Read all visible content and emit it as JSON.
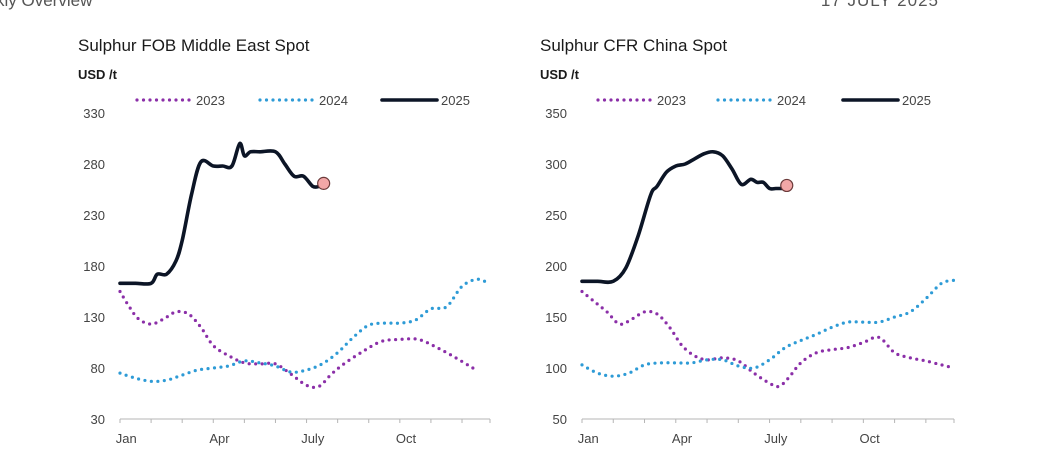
{
  "header": {
    "left_text": "kly Overview",
    "right_text": "17 JULY 2025"
  },
  "chart_data": [
    {
      "type": "line",
      "title": "Sulphur FOB Middle East Spot",
      "ylabel": "USD /t",
      "xlabel": "",
      "ylim": [
        30,
        330
      ],
      "yticks": [
        30,
        80,
        130,
        180,
        230,
        280,
        330
      ],
      "xlim": [
        1,
        12.9
      ],
      "xticks": [
        {
          "v": 1.2,
          "label": "Jan"
        },
        {
          "v": 4.2,
          "label": "Apr"
        },
        {
          "v": 7.2,
          "label": "July"
        },
        {
          "v": 10.2,
          "label": "Oct"
        }
      ],
      "legend_position": "top",
      "grid": false,
      "series": [
        {
          "name": "2023",
          "color": "#8b2fa8",
          "style": "dotted",
          "x": [
            1,
            1.3,
            1.6,
            2,
            2.4,
            2.8,
            3.2,
            3.6,
            4,
            4.5,
            5,
            5.5,
            6,
            6.5,
            7,
            7.4,
            7.8,
            8.2,
            8.8,
            9.4,
            10,
            10.6,
            11.2,
            11.8,
            12.4
          ],
          "values": [
            155,
            140,
            128,
            123,
            128,
            135,
            133,
            120,
            102,
            92,
            85,
            84,
            84,
            74,
            63,
            62,
            74,
            84,
            96,
            106,
            108,
            108,
            100,
            90,
            79
          ]
        },
        {
          "name": "2024",
          "color": "#2e9bd6",
          "style": "dotted",
          "x": [
            1,
            1.5,
            2,
            2.5,
            3,
            3.5,
            4,
            4.5,
            5,
            5.5,
            6,
            6.5,
            7,
            7.5,
            8,
            8.5,
            9,
            9.5,
            10,
            10.5,
            11,
            11.5,
            12,
            12.5,
            12.9
          ],
          "values": [
            75,
            70,
            67,
            68,
            73,
            78,
            80,
            82,
            87,
            85,
            82,
            76,
            78,
            84,
            95,
            110,
            122,
            124,
            124,
            127,
            138,
            140,
            160,
            167,
            162
          ]
        },
        {
          "name": "2025",
          "color": "#0c1526",
          "style": "solid",
          "x": [
            1,
            1.5,
            2,
            2.2,
            2.5,
            2.8,
            3,
            3.3,
            3.6,
            4,
            4.3,
            4.6,
            4.85,
            5,
            5.2,
            5.5,
            6,
            6.3,
            6.6,
            6.9,
            7.2,
            7.4
          ],
          "values": [
            163,
            163,
            163,
            172,
            172,
            185,
            205,
            250,
            282,
            278,
            278,
            278,
            300,
            288,
            292,
            292,
            292,
            280,
            268,
            268,
            258,
            258
          ]
        }
      ],
      "marker": {
        "x": 7.55,
        "value": 261,
        "color": "#f2a7a7"
      }
    },
    {
      "type": "line",
      "title": "Sulphur CFR China Spot",
      "ylabel": "USD /t",
      "xlabel": "",
      "ylim": [
        50,
        350
      ],
      "yticks": [
        50,
        100,
        150,
        200,
        250,
        300,
        350
      ],
      "xlim": [
        1,
        12.9
      ],
      "xticks": [
        {
          "v": 1.2,
          "label": "Jan"
        },
        {
          "v": 4.2,
          "label": "Apr"
        },
        {
          "v": 7.2,
          "label": "July"
        },
        {
          "v": 10.2,
          "label": "Oct"
        }
      ],
      "legend_position": "top",
      "grid": false,
      "series": [
        {
          "name": "2023",
          "color": "#8b2fa8",
          "style": "dotted",
          "x": [
            1,
            1.4,
            1.8,
            2.2,
            2.6,
            3,
            3.4,
            3.8,
            4.2,
            4.6,
            5,
            5.5,
            6,
            6.5,
            7,
            7.3,
            7.6,
            8,
            8.5,
            9,
            9.5,
            10,
            10.5,
            11,
            11.5,
            12,
            12.5,
            12.9
          ],
          "values": [
            175,
            165,
            155,
            143,
            148,
            155,
            153,
            140,
            122,
            112,
            108,
            110,
            107,
            95,
            85,
            82,
            90,
            105,
            115,
            118,
            120,
            125,
            130,
            115,
            110,
            107,
            103,
            100
          ]
        },
        {
          "name": "2024",
          "color": "#2e9bd6",
          "style": "dotted",
          "x": [
            1,
            1.5,
            2,
            2.5,
            3,
            3.5,
            4,
            4.5,
            5,
            5.5,
            6,
            6.5,
            7,
            7.5,
            8,
            8.5,
            9,
            9.5,
            10,
            10.5,
            11,
            11.5,
            12,
            12.5,
            12.9
          ],
          "values": [
            103,
            95,
            92,
            95,
            103,
            105,
            105,
            105,
            108,
            108,
            102,
            100,
            108,
            120,
            127,
            133,
            140,
            145,
            145,
            145,
            150,
            155,
            168,
            183,
            186
          ]
        },
        {
          "name": "2025",
          "color": "#0c1526",
          "style": "solid",
          "x": [
            1,
            1.5,
            2,
            2.4,
            2.8,
            3.2,
            3.4,
            3.7,
            4,
            4.3,
            4.6,
            4.9,
            5.2,
            5.5,
            5.8,
            6.1,
            6.4,
            6.6,
            6.8,
            7,
            7.2,
            7.4
          ],
          "values": [
            185,
            185,
            185,
            198,
            230,
            270,
            278,
            292,
            298,
            300,
            305,
            310,
            312,
            308,
            295,
            280,
            285,
            282,
            282,
            276,
            276,
            276
          ]
        }
      ],
      "marker": {
        "x": 7.55,
        "value": 279,
        "color": "#f2a7a7"
      }
    }
  ]
}
